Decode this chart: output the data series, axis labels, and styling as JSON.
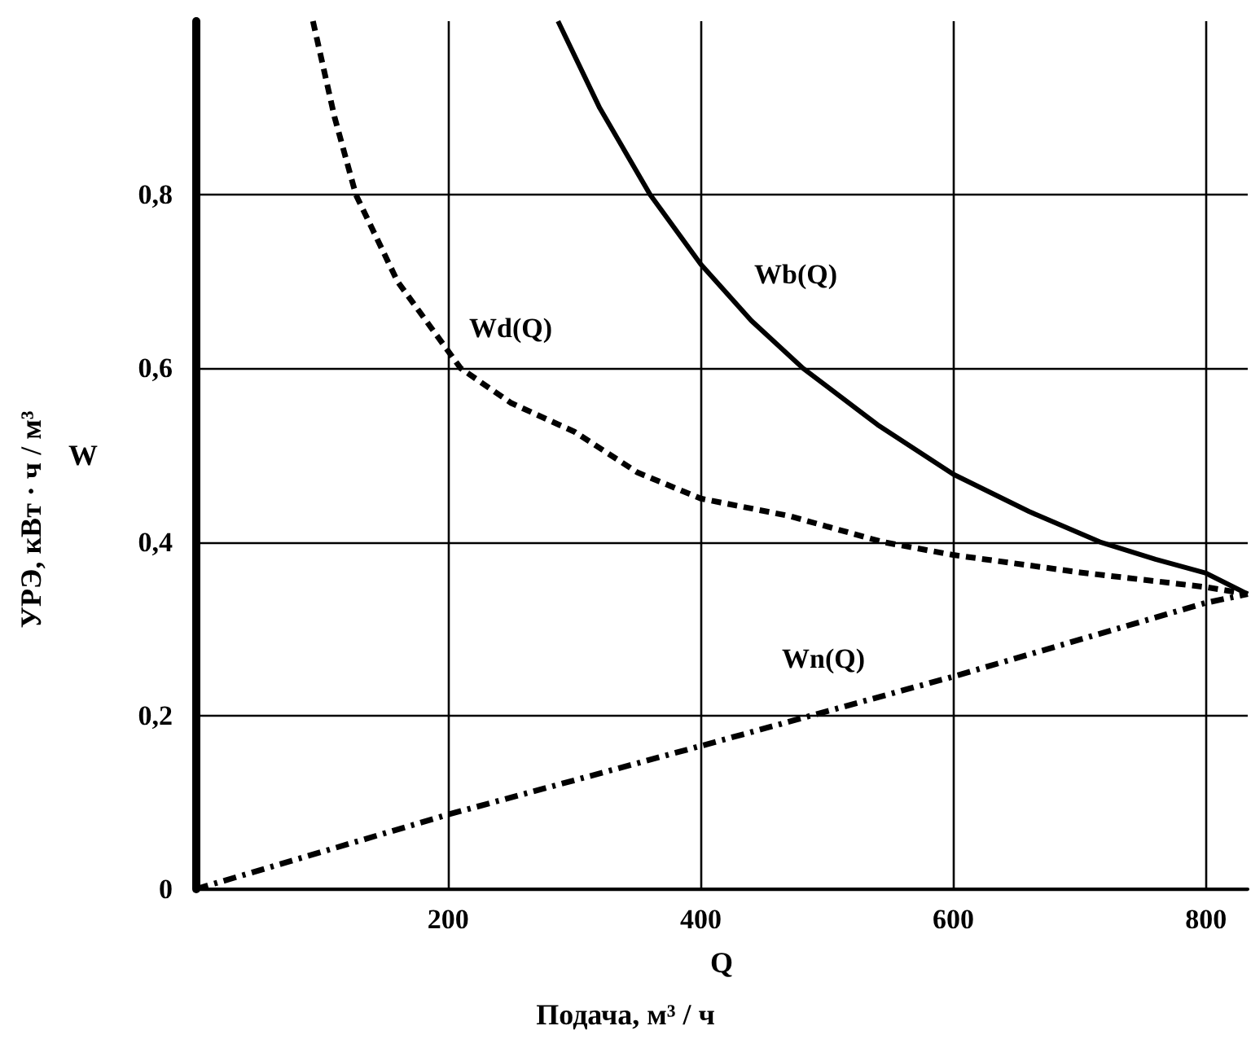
{
  "chart_data": {
    "type": "line",
    "xlabel": "Q",
    "ylabel": "W",
    "xlim": [
      0,
      833
    ],
    "ylim": [
      0,
      1
    ],
    "xticks": [
      200,
      400,
      600,
      800
    ],
    "yticks": [
      0,
      {
        "value": 0.2,
        "label": "0,2"
      },
      {
        "value": 0.4,
        "label": "0,4"
      },
      {
        "value": 0.6,
        "label": "0,6"
      },
      {
        "value": 0.8,
        "label": "0,8"
      }
    ],
    "grid": true,
    "marker": "none",
    "series": [
      {
        "color": "#000000",
        "line_style": "solid",
        "x": [
          287,
          320,
          360,
          400,
          440,
          481,
          540,
          600,
          660,
          716,
          760,
          800,
          833
        ],
        "values": [
          1,
          0.9,
          0.8,
          0.72,
          0.655,
          0.6,
          0.535,
          0.478,
          0.435,
          0.4,
          0.38,
          0.364,
          0.34
        ]
      },
      {
        "color": "#000000",
        "line_style": "dashed",
        "x": [
          93,
          110,
          127,
          160,
          210,
          250,
          300,
          350,
          400,
          470,
          544,
          600,
          700,
          800,
          833
        ],
        "values": [
          1,
          0.89,
          0.8,
          0.7,
          0.6,
          0.56,
          0.527,
          0.48,
          0.45,
          0.43,
          0.4,
          0.385,
          0.365,
          0.348,
          0.34
        ]
      },
      {
        "color": "#000000",
        "line_style": "dashdot",
        "x": [
          0,
          200,
          400,
          600,
          800,
          833
        ],
        "values": [
          0,
          0.086,
          0.165,
          0.245,
          0.33,
          0.34
        ]
      }
    ],
    "annotations": [
      "Wb(Q)",
      "Wd(Q)",
      "Wn(Q)",
      "Подача, м³ / ч",
      "УРЭ, кВт · ч / м³"
    ]
  }
}
